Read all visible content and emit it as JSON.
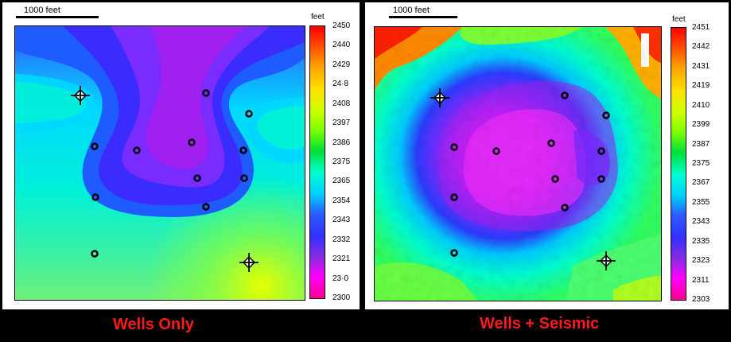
{
  "panels": [
    {
      "id": "wells-only",
      "scale_label": "1000 feet",
      "unit": "feet",
      "ticks": [
        "2450",
        "2440",
        "2429",
        "24·8",
        "2408",
        "2397",
        "2386",
        "2375",
        "2365",
        "2354",
        "2343",
        "2332",
        "2321",
        "23·0",
        "2300"
      ],
      "caption": "Wells Only"
    },
    {
      "id": "wells-seismic",
      "scale_label": "1000 feet",
      "unit": "feet",
      "ticks": [
        "2451",
        "2442",
        "2431",
        "2419",
        "2410",
        "2399",
        "2387",
        "2375",
        "2367",
        "2355",
        "2343",
        "2335",
        "2323",
        "2311",
        "2303"
      ],
      "caption": "Wells + Seismic"
    }
  ],
  "colors": {
    "colorbar": [
      "#ff0000",
      "#ff5500",
      "#ffa500",
      "#ffe000",
      "#d0ff00",
      "#7fff00",
      "#00e03a",
      "#00ffd0",
      "#00ccff",
      "#2b5cff",
      "#3030ff",
      "#8a2be2",
      "#ff00ff",
      "#ff0090"
    ],
    "caption": "#ff1a1a"
  },
  "wells_left": [
    "well",
    "well",
    "well",
    "well",
    "well",
    "well",
    "well",
    "well",
    "well",
    "well"
  ],
  "wells_right": [
    "well",
    "well",
    "well",
    "well",
    "well",
    "well",
    "well",
    "well",
    "well",
    "well"
  ],
  "icons": {
    "well": "circle-well-icon",
    "crosshair": "crosshair-well-icon"
  }
}
